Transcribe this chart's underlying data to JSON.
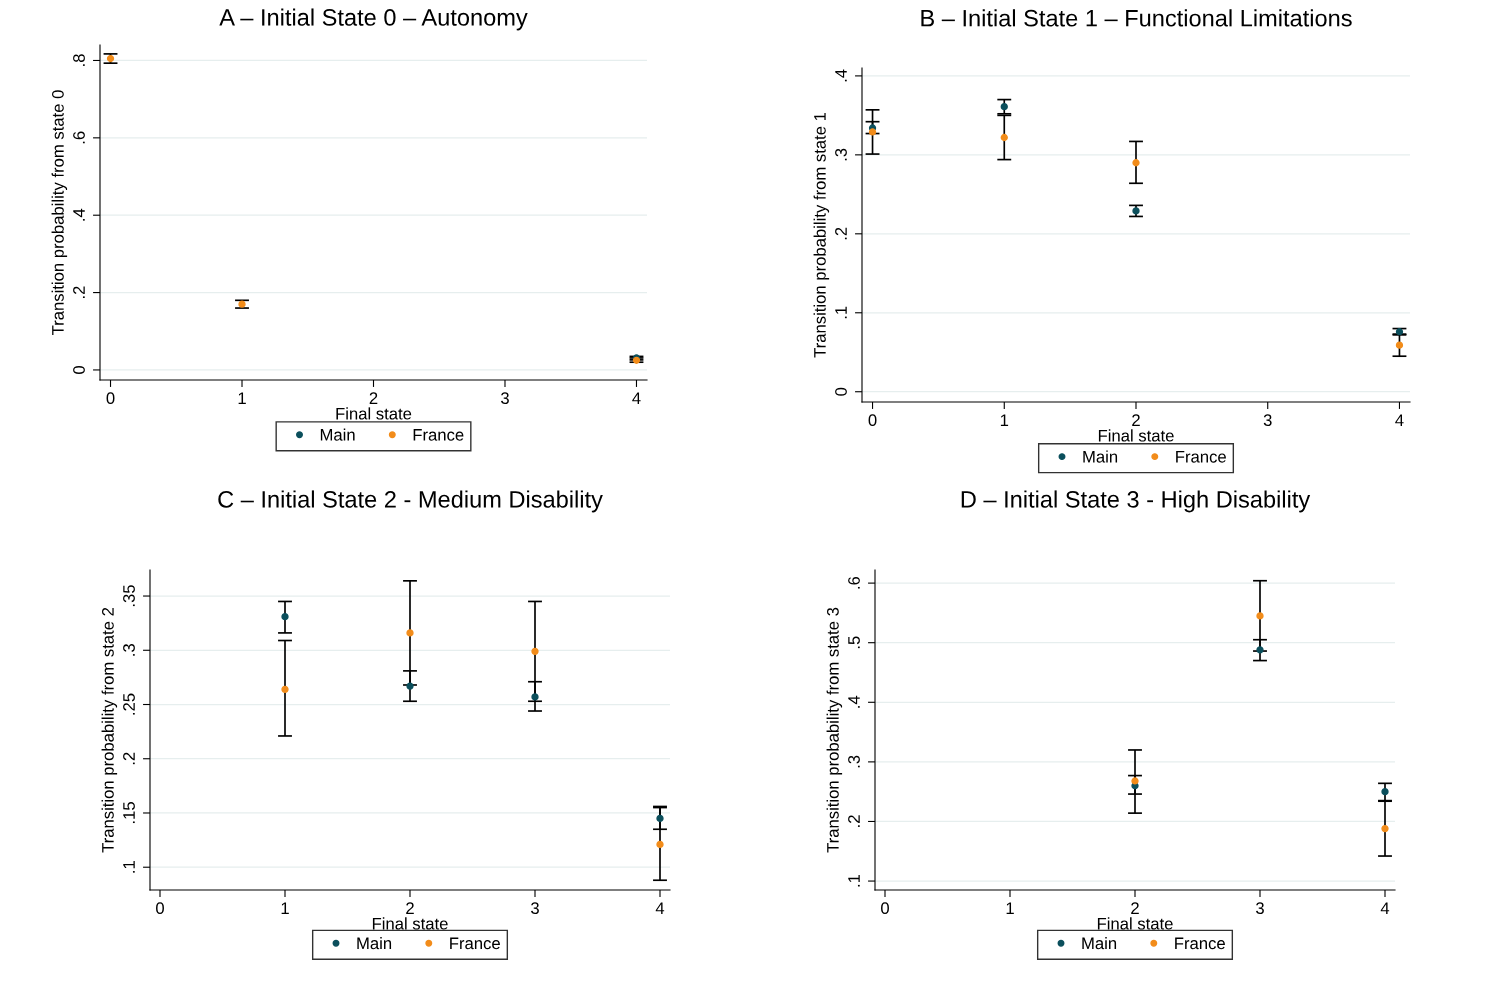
{
  "chart_data": [
    {
      "type": "scatter",
      "title": "A – Initial State 0 – Autonomy",
      "xlabel": "Final state",
      "ylabel": "Transition probability from state 0",
      "xlim": [
        -0.08,
        4.08
      ],
      "ylim": [
        -0.026,
        0.84
      ],
      "xticks": [
        0,
        1,
        2,
        3,
        4
      ],
      "yticks": [
        0,
        {
          "value": 0.2,
          "label": ".2"
        },
        {
          "value": 0.4,
          "label": ".4"
        },
        {
          "value": 0.6,
          "label": ".6"
        },
        {
          "value": 0.8,
          "label": ".8"
        }
      ],
      "grid": "y",
      "legend": "bottom",
      "marker": "circle",
      "series": [
        {
          "name": "Main",
          "color": "#0b4f5c",
          "x": [
            4
          ],
          "values": [
            0.031
          ],
          "errors": [
            [
              0.026,
              0.035
            ]
          ]
        },
        {
          "name": "France",
          "color": "#f28c1a",
          "x": [
            0,
            1,
            4
          ],
          "values": [
            0.805,
            0.17,
            0.025
          ],
          "errors": [
            [
              0.793,
              0.817
            ],
            [
              0.16,
              0.18
            ],
            [
              0.02,
              0.031
            ]
          ]
        }
      ]
    },
    {
      "type": "scatter",
      "title": "B – Initial State 1 – Functional Limitations",
      "xlabel": "Final state",
      "ylabel": "Transition probability from state 1",
      "xlim": [
        -0.08,
        4.08
      ],
      "ylim": [
        -0.013,
        0.41
      ],
      "xticks": [
        0,
        1,
        2,
        3,
        4
      ],
      "yticks": [
        0,
        {
          "value": 0.1,
          "label": ".1"
        },
        {
          "value": 0.2,
          "label": ".2"
        },
        {
          "value": 0.3,
          "label": ".3"
        },
        {
          "value": 0.4,
          "label": ".4"
        }
      ],
      "grid": "y",
      "legend": "bottom",
      "marker": "circle",
      "series": [
        {
          "name": "Main",
          "color": "#0b4f5c",
          "x": [
            0,
            1,
            2,
            4
          ],
          "values": [
            0.334,
            0.361,
            0.229,
            0.076
          ],
          "errors": [
            [
              0.327,
              0.342
            ],
            [
              0.352,
              0.37
            ],
            [
              0.222,
              0.236
            ],
            [
              0.072,
              0.08
            ]
          ]
        },
        {
          "name": "France",
          "color": "#f28c1a",
          "x": [
            0,
            1,
            2,
            4
          ],
          "values": [
            0.329,
            0.322,
            0.29,
            0.059
          ],
          "errors": [
            [
              0.301,
              0.357
            ],
            [
              0.294,
              0.35
            ],
            [
              0.264,
              0.317
            ],
            [
              0.045,
              0.073
            ]
          ]
        }
      ]
    },
    {
      "type": "scatter",
      "title": "C – Initial State 2 - Medium Disability",
      "xlabel": "Final state",
      "ylabel": "Transition probability from state 2",
      "xlim": [
        -0.08,
        4.08
      ],
      "ylim": [
        0.079,
        0.374
      ],
      "xticks": [
        0,
        1,
        2,
        3,
        4
      ],
      "yticks": [
        {
          "value": 0.1,
          "label": ".1"
        },
        {
          "value": 0.15,
          "label": ".15"
        },
        {
          "value": 0.2,
          "label": ".2"
        },
        {
          "value": 0.25,
          "label": ".25"
        },
        {
          "value": 0.3,
          "label": ".3"
        },
        {
          "value": 0.35,
          "label": ".35"
        }
      ],
      "grid": "y",
      "legend": "bottom",
      "marker": "circle",
      "series": [
        {
          "name": "Main",
          "color": "#0b4f5c",
          "x": [
            1,
            2,
            3,
            4
          ],
          "values": [
            0.331,
            0.267,
            0.257,
            0.145
          ],
          "errors": [
            [
              0.316,
              0.345
            ],
            [
              0.253,
              0.281
            ],
            [
              0.244,
              0.271
            ],
            [
              0.135,
              0.156
            ]
          ]
        },
        {
          "name": "France",
          "color": "#f28c1a",
          "x": [
            1,
            2,
            3,
            4
          ],
          "values": [
            0.264,
            0.316,
            0.299,
            0.121
          ],
          "errors": [
            [
              0.221,
              0.309
            ],
            [
              0.268,
              0.364
            ],
            [
              0.253,
              0.345
            ],
            [
              0.088,
              0.155
            ]
          ]
        }
      ]
    },
    {
      "type": "scatter",
      "title": "D – Initial State 3 - High Disability",
      "xlabel": "Final state",
      "ylabel": "Transition probability from state 3",
      "xlim": [
        -0.08,
        4.08
      ],
      "ylim": [
        0.085,
        0.622
      ],
      "xticks": [
        0,
        1,
        2,
        3,
        4
      ],
      "yticks": [
        {
          "value": 0.1,
          "label": ".1"
        },
        {
          "value": 0.2,
          "label": ".2"
        },
        {
          "value": 0.3,
          "label": ".3"
        },
        {
          "value": 0.4,
          "label": ".4"
        },
        {
          "value": 0.5,
          "label": ".5"
        },
        {
          "value": 0.6,
          "label": ".6"
        }
      ],
      "grid": "y",
      "legend": "bottom",
      "marker": "circle",
      "series": [
        {
          "name": "Main",
          "color": "#0b4f5c",
          "x": [
            2,
            3,
            4
          ],
          "values": [
            0.26,
            0.488,
            0.25
          ],
          "errors": [
            [
              0.246,
              0.277
            ],
            [
              0.47,
              0.505
            ],
            [
              0.235,
              0.264
            ]
          ]
        },
        {
          "name": "France",
          "color": "#f28c1a",
          "x": [
            2,
            3,
            4
          ],
          "values": [
            0.268,
            0.545,
            0.188
          ],
          "errors": [
            [
              0.214,
              0.32
            ],
            [
              0.486,
              0.604
            ],
            [
              0.142,
              0.234
            ]
          ]
        }
      ]
    }
  ]
}
